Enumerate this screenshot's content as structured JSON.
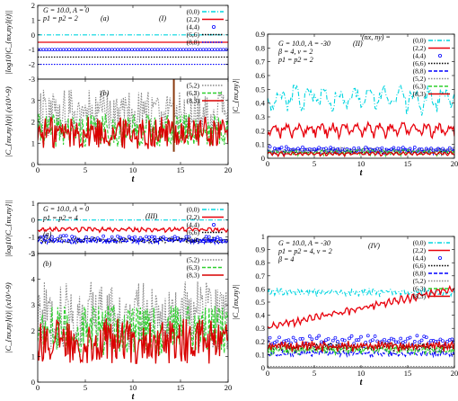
{
  "chart_data": [
    {
      "id": "I_a",
      "type": "line",
      "ylabel": "|log10|C_{nx,ny}(t)||",
      "xlabel": "",
      "xlim": [
        0,
        20
      ],
      "ylim": [
        -3,
        2
      ],
      "yticks": [
        "2",
        "1",
        "0",
        "-1",
        "-2",
        "-3"
      ],
      "xticks": [],
      "annotations": [
        "G = 10.0, A = 0",
        "p1 = p2 = 2",
        "(a)",
        "(I)"
      ],
      "series": [
        {
          "name": "(0,0)",
          "color": "#00d5e0",
          "style": "dashdot",
          "constant": 0.0
        },
        {
          "name": "(2,2)",
          "color": "#e8000b",
          "style": "solid",
          "constant": -0.5
        },
        {
          "name": "(4,4)",
          "color": "#0000ff",
          "style": "circles",
          "constant": -1.0
        },
        {
          "name": "(6,6)",
          "color": "#000000",
          "style": "dotted",
          "constant": -1.5
        },
        {
          "name": "(8,8)",
          "color": "#0000ff",
          "style": "dotted",
          "constant": -2.0
        }
      ]
    },
    {
      "id": "I_b",
      "type": "line",
      "ylabel": "|C_{nx,ny}(t)| (x10^-9)",
      "xlabel": "t",
      "xlim": [
        0,
        20
      ],
      "ylim": [
        0,
        4
      ],
      "xticks": [
        "0",
        "5",
        "10",
        "15",
        "20"
      ],
      "yticks": [
        "0",
        "1",
        "2",
        "3"
      ],
      "annotations": [
        "(b)"
      ],
      "series": [
        {
          "name": "(5,2)",
          "color": "#888888",
          "style": "dotted",
          "mean": 2.4,
          "amp": 1.0
        },
        {
          "name": "(6,3)",
          "color": "#2fd02f",
          "style": "dashed",
          "mean": 1.6,
          "amp": 0.7
        },
        {
          "name": "(8,3)",
          "color": "#d90000",
          "style": "solid",
          "mean": 1.5,
          "amp": 0.7
        }
      ],
      "spike": {
        "x": 14.3,
        "color": "#8b3a0f"
      }
    },
    {
      "id": "II",
      "type": "line",
      "ylabel": "|C_{nx,ny}|",
      "xlabel": "t",
      "xlim": [
        0,
        20
      ],
      "ylim": [
        0,
        0.9
      ],
      "xticks": [
        "0",
        "5",
        "10",
        "15",
        "20"
      ],
      "yticks": [
        "0",
        "0.1",
        "0.2",
        "0.3",
        "0.4",
        "0.5",
        "0.6",
        "0.7",
        "0.8",
        "0.9"
      ],
      "annotations": [
        "G = 10.0, A = -30",
        "(II)",
        "β = 4, v = 2",
        "p1 = p2 = 2",
        "(nx, ny) ="
      ],
      "series": [
        {
          "name": "(0,0)",
          "color": "#00d5e0",
          "style": "dashdot",
          "mean": 0.42,
          "amp": 0.13,
          "period": 3.2
        },
        {
          "name": "(2,2)",
          "color": "#e8000b",
          "style": "solid",
          "mean": 0.2,
          "amp": 0.07,
          "period": 2.5
        },
        {
          "name": "(4,4)",
          "color": "#0000ff",
          "style": "circles",
          "mean": 0.06,
          "amp": 0.03,
          "period": 1.2
        },
        {
          "name": "(6,6)",
          "color": "#000000",
          "style": "dotted",
          "mean": 0.04,
          "amp": 0.02,
          "period": 1.0
        },
        {
          "name": "(8,8)",
          "color": "#0000ff",
          "style": "dashed",
          "mean": 0.05,
          "amp": 0.03,
          "period": 0.9
        },
        {
          "name": "(5,2)",
          "color": "#888888",
          "style": "dotted",
          "mean": 0.05,
          "amp": 0.03,
          "period": 0.8
        },
        {
          "name": "(6,3)",
          "color": "#2fd02f",
          "style": "dashed",
          "mean": 0.04,
          "amp": 0.03,
          "period": 1.1
        },
        {
          "name": "(8,3)",
          "color": "#d90000",
          "style": "solid",
          "mean": 0.03,
          "amp": 0.02,
          "period": 1.3
        }
      ]
    },
    {
      "id": "III_a",
      "type": "line",
      "ylabel": "|log10|C_{nx,ny}||",
      "xlabel": "",
      "xlim": [
        0,
        20
      ],
      "ylim": [
        -2,
        1
      ],
      "yticks": [
        "1",
        "0",
        "-1",
        "-2"
      ],
      "xticks": [],
      "annotations": [
        "G = 10.0, A = 0",
        "p1 = p2 = 4",
        "(III)",
        "(a)"
      ],
      "series": [
        {
          "name": "(0,0)",
          "color": "#00d5e0",
          "style": "dashdot",
          "constant": 0.0
        },
        {
          "name": "(2,2)",
          "color": "#e8000b",
          "style": "solid",
          "mean": -0.6,
          "amp": 0.2,
          "period": 1.4
        },
        {
          "name": "(4,4)",
          "color": "#0000ff",
          "style": "circles",
          "mean": -1.1,
          "amp": 0.15
        },
        {
          "name": "(6,6)",
          "color": "#000000",
          "style": "dotted",
          "mean": -1.2,
          "amp": 0.15
        },
        {
          "name": "(8,8)",
          "color": "#0000ff",
          "style": "dashed",
          "mean": -1.25,
          "amp": 0.15
        }
      ]
    },
    {
      "id": "III_b",
      "type": "line",
      "ylabel": "|C_{nx,ny}(t)| (x10^-9)",
      "xlabel": "t",
      "xlim": [
        0,
        20
      ],
      "ylim": [
        0,
        5
      ],
      "xticks": [
        "0",
        "5",
        "10",
        "15",
        "20"
      ],
      "yticks": [
        "0",
        "1",
        "2",
        "3",
        "4",
        "5"
      ],
      "annotations": [
        "(b)"
      ],
      "series": [
        {
          "name": "(5,2)",
          "color": "#888888",
          "style": "dotted",
          "mean": 2.6,
          "amp": 1.2
        },
        {
          "name": "(6,3)",
          "color": "#2fd02f",
          "style": "dashed",
          "mean": 2.0,
          "amp": 0.9
        },
        {
          "name": "(8,3)",
          "color": "#d90000",
          "style": "solid",
          "mean": 1.6,
          "amp": 0.8
        }
      ]
    },
    {
      "id": "IV",
      "type": "line",
      "ylabel": "|C_{nx,ny}|",
      "xlabel": "t",
      "xlim": [
        0,
        20
      ],
      "ylim": [
        0,
        1
      ],
      "xticks": [
        "0",
        "5",
        "10",
        "15",
        "20"
      ],
      "yticks": [
        "0",
        "0.1",
        "0.2",
        "0.3",
        "0.4",
        "0.5",
        "0.6",
        "0.7",
        "0.8",
        "0.9",
        "1"
      ],
      "annotations": [
        "G = 10.0, A = -30",
        "(IV)",
        "p1 = p2 = 4, v = 2",
        "β = 4"
      ],
      "series": [
        {
          "name": "(0,0)",
          "color": "#00d5e0",
          "style": "dashdot",
          "mean": 0.57,
          "amp": 0.04,
          "period": 0.9
        },
        {
          "name": "(2,2)",
          "color": "#e8000b",
          "style": "solid",
          "trend": [
            0.3,
            0.6
          ],
          "amp": 0.04,
          "period": 1.3
        },
        {
          "name": "(4,4)",
          "color": "#0000ff",
          "style": "circles",
          "mean": 0.2,
          "amp": 0.05,
          "period": 0.7
        },
        {
          "name": "(6,6)",
          "color": "#000000",
          "style": "dotted",
          "mean": 0.15,
          "amp": 0.05,
          "period": 0.6
        },
        {
          "name": "(8,8)",
          "color": "#0000ff",
          "style": "dashed",
          "mean": 0.1,
          "amp": 0.05,
          "period": 0.5
        },
        {
          "name": "(5,2)",
          "color": "#888888",
          "style": "dotted",
          "mean": 0.01,
          "amp": 0.0,
          "period": 1.0
        },
        {
          "name": "(6,3)",
          "color": "#2fd02f",
          "style": "dashed",
          "mean": 0.13,
          "amp": 0.05,
          "period": 0.55
        },
        {
          "name": "(8,3)",
          "color": "#d90000",
          "style": "solid",
          "mean": 0.16,
          "amp": 0.05,
          "period": 0.65
        }
      ]
    }
  ]
}
